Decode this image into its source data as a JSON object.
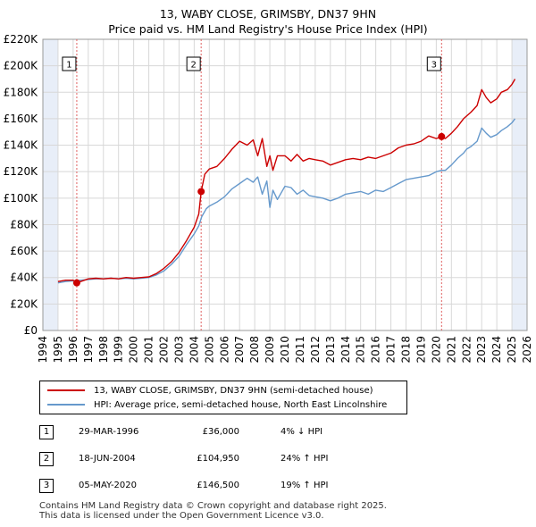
{
  "title_line1": "13, WABY CLOSE, GRIMSBY, DN37 9HN",
  "title_line2": "Price paid vs. HM Land Registry's House Price Index (HPI)",
  "colors": {
    "price_line": "#cc0000",
    "hpi_line": "#6699cc",
    "shade": "#e8eef8",
    "marker": "#cc0000",
    "vline": "#e06060"
  },
  "chart_data": {
    "type": "line",
    "x_ticks": [
      "1994",
      "1995",
      "1996",
      "1997",
      "1998",
      "1999",
      "2000",
      "2001",
      "2002",
      "2003",
      "2004",
      "2005",
      "2006",
      "2007",
      "2008",
      "2009",
      "2010",
      "2011",
      "2012",
      "2013",
      "2014",
      "2015",
      "2016",
      "2017",
      "2018",
      "2019",
      "2020",
      "2021",
      "2022",
      "2023",
      "2024",
      "2025",
      "2026"
    ],
    "y_ticks": [
      "£0",
      "£20K",
      "£40K",
      "£60K",
      "£80K",
      "£100K",
      "£120K",
      "£140K",
      "£160K",
      "£180K",
      "£200K",
      "£220K"
    ],
    "xlim": [
      1994,
      2026
    ],
    "ylim": [
      0,
      220000
    ],
    "series": [
      {
        "name": "price_paid_line",
        "x": [
          1995.0,
          1995.5,
          1996.0,
          1996.24,
          1996.5,
          1997.0,
          1997.5,
          1998.0,
          1998.5,
          1999.0,
          1999.5,
          2000.0,
          2000.5,
          2001.0,
          2001.5,
          2002.0,
          2002.5,
          2003.0,
          2003.5,
          2004.0,
          2004.3,
          2004.46,
          2004.7,
          2005.0,
          2005.5,
          2006.0,
          2006.5,
          2007.0,
          2007.5,
          2007.9,
          2008.2,
          2008.5,
          2008.8,
          2009.0,
          2009.2,
          2009.5,
          2010.0,
          2010.4,
          2010.8,
          2011.2,
          2011.6,
          2012.0,
          2012.5,
          2013.0,
          2013.5,
          2014.0,
          2014.5,
          2015.0,
          2015.5,
          2016.0,
          2016.5,
          2017.0,
          2017.5,
          2018.0,
          2018.5,
          2019.0,
          2019.5,
          2020.0,
          2020.35,
          2020.6,
          2021.0,
          2021.4,
          2021.8,
          2022.0,
          2022.3,
          2022.7,
          2023.0,
          2023.3,
          2023.6,
          2024.0,
          2024.3,
          2024.7,
          2025.0,
          2025.2
        ],
        "values": [
          37000,
          38000,
          38000,
          36000,
          37000,
          39000,
          39500,
          39000,
          39500,
          39000,
          40000,
          39500,
          40000,
          40500,
          43000,
          47000,
          52000,
          59000,
          68000,
          78000,
          88000,
          104950,
          118000,
          122000,
          124000,
          130000,
          137000,
          143000,
          140000,
          144000,
          132000,
          145000,
          124000,
          132000,
          121000,
          132000,
          132000,
          128000,
          133000,
          128000,
          130000,
          129000,
          128000,
          125000,
          127000,
          129000,
          130000,
          129000,
          131000,
          130000,
          132000,
          134000,
          138000,
          140000,
          141000,
          143000,
          147000,
          145000,
          146500,
          145000,
          149000,
          154000,
          160000,
          162000,
          165000,
          170000,
          182000,
          176000,
          172000,
          175000,
          180000,
          182000,
          186000,
          190000
        ]
      },
      {
        "name": "hpi_line",
        "x": [
          1995.0,
          1995.5,
          1996.0,
          1996.5,
          1997.0,
          1997.5,
          1998.0,
          1998.5,
          1999.0,
          1999.5,
          2000.0,
          2000.5,
          2001.0,
          2001.5,
          2002.0,
          2002.5,
          2003.0,
          2003.5,
          2004.0,
          2004.3,
          2004.5,
          2004.8,
          2005.0,
          2005.5,
          2006.0,
          2006.5,
          2007.0,
          2007.5,
          2007.9,
          2008.2,
          2008.5,
          2008.8,
          2009.0,
          2009.2,
          2009.5,
          2010.0,
          2010.4,
          2010.8,
          2011.2,
          2011.6,
          2012.0,
          2012.5,
          2013.0,
          2013.5,
          2014.0,
          2014.5,
          2015.0,
          2015.5,
          2016.0,
          2016.5,
          2017.0,
          2017.5,
          2018.0,
          2018.5,
          2019.0,
          2019.5,
          2020.0,
          2020.35,
          2020.6,
          2021.0,
          2021.4,
          2021.8,
          2022.0,
          2022.3,
          2022.7,
          2023.0,
          2023.3,
          2023.6,
          2024.0,
          2024.3,
          2024.7,
          2025.0,
          2025.2
        ],
        "values": [
          36000,
          37000,
          37500,
          38000,
          38500,
          39000,
          39000,
          39500,
          39000,
          39500,
          39000,
          39500,
          40000,
          42000,
          45000,
          50000,
          56000,
          65000,
          73000,
          79000,
          86000,
          92000,
          94000,
          97000,
          101000,
          107000,
          111000,
          115000,
          112000,
          116000,
          103000,
          113000,
          93000,
          106000,
          99000,
          109000,
          108000,
          103000,
          106000,
          102000,
          101000,
          100000,
          98000,
          100000,
          103000,
          104000,
          105000,
          103000,
          106000,
          105000,
          108000,
          111000,
          114000,
          115000,
          116000,
          117000,
          120000,
          121000,
          121000,
          125000,
          130000,
          134000,
          137000,
          139000,
          143000,
          153000,
          149000,
          146000,
          148000,
          151000,
          154000,
          157000,
          160000
        ]
      }
    ],
    "transactions": [
      {
        "label": "1",
        "year": 1996.24,
        "price": 36000,
        "date": "29-MAR-1996",
        "price_text": "£36,000",
        "hpi_text": "4% ↓ HPI"
      },
      {
        "label": "2",
        "year": 2004.46,
        "price": 104950,
        "date": "18-JUN-2004",
        "price_text": "£104,950",
        "hpi_text": "24% ↑ HPI"
      },
      {
        "label": "3",
        "year": 2020.35,
        "price": 146500,
        "date": "05-MAY-2020",
        "price_text": "£146,500",
        "hpi_text": "19% ↑ HPI"
      }
    ],
    "shaded_periods": [
      [
        1994,
        1995
      ],
      [
        2025,
        2026
      ]
    ]
  },
  "legend": {
    "price_label": "13, WABY CLOSE, GRIMSBY, DN37 9HN (semi-detached house)",
    "hpi_label": "HPI: Average price, semi-detached house, North East Lincolnshire"
  },
  "footer": {
    "line1": "Contains HM Land Registry data © Crown copyright and database right 2025.",
    "line2": "This data is licensed under the Open Government Licence v3.0."
  }
}
